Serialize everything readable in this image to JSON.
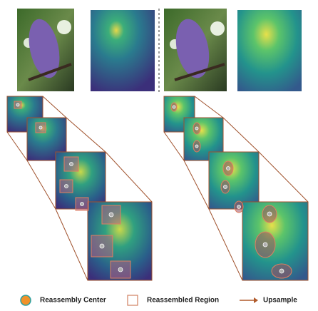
{
  "legend": [
    {
      "label": "Reassembly Center"
    },
    {
      "label": "Reassembled Region"
    },
    {
      "label": "Upsample"
    }
  ]
}
